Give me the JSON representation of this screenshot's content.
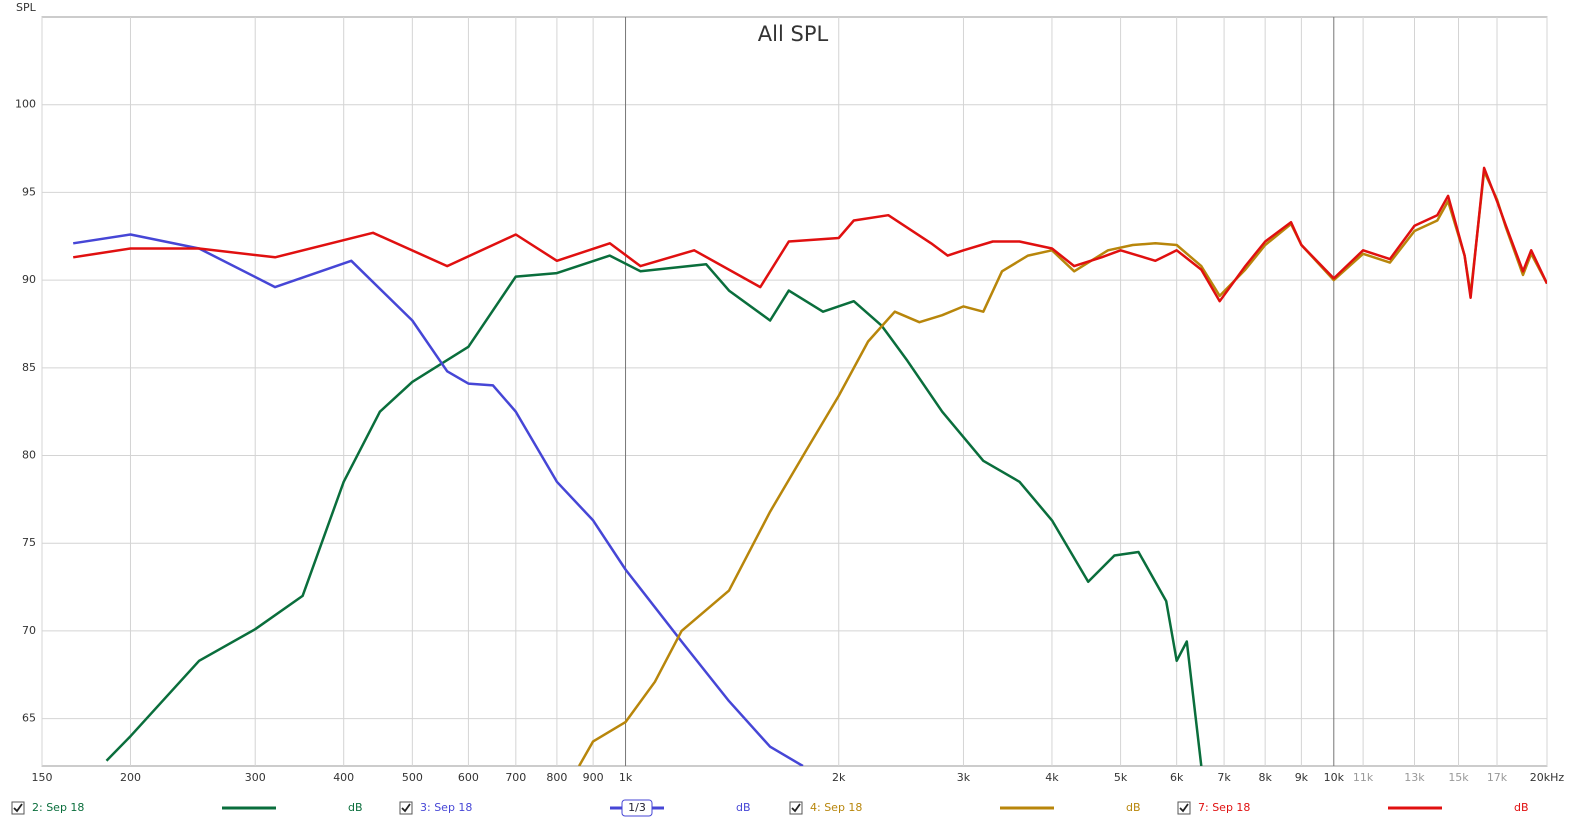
{
  "chart_data": {
    "type": "line",
    "title": "All SPL",
    "y_label": "SPL",
    "x_scale": "log",
    "grid": true,
    "xlim": [
      150,
      20000
    ],
    "ylim": [
      62.3,
      105
    ],
    "xticks": [
      150,
      200,
      300,
      400,
      500,
      600,
      700,
      800,
      900,
      {
        "value": 1000,
        "label": "1k"
      },
      {
        "value": 2000,
        "label": "2k"
      },
      {
        "value": 3000,
        "label": "3k"
      },
      {
        "value": 4000,
        "label": "4k"
      },
      {
        "value": 5000,
        "label": "5k"
      },
      {
        "value": 6000,
        "label": "6k"
      },
      {
        "value": 7000,
        "label": "7k"
      },
      {
        "value": 8000,
        "label": "8k"
      },
      {
        "value": 9000,
        "label": "9k"
      },
      {
        "value": 10000,
        "label": "10k"
      },
      {
        "value": 11000,
        "label": "11k"
      },
      {
        "value": 13000,
        "label": "13k"
      },
      {
        "value": 15000,
        "label": "15k"
      },
      {
        "value": 17000,
        "label": "17k"
      },
      {
        "value": 20000,
        "label": "20kHz"
      }
    ],
    "yticks": [
      65,
      70,
      75,
      80,
      85,
      90,
      95,
      100
    ],
    "series": [
      {
        "name": "2: Sep 18",
        "color": "#0a6e3c",
        "unit": "dB",
        "x": [
          185,
          200,
          250,
          300,
          350,
          400,
          450,
          500,
          600,
          700,
          800,
          950,
          1050,
          1300,
          1400,
          1600,
          1700,
          1900,
          2100,
          2300,
          2500,
          2800,
          3200,
          3600,
          4000,
          4500,
          4900,
          5300,
          5800,
          6000,
          6200,
          6500
        ],
        "values": [
          62.6,
          64.0,
          68.3,
          70.1,
          72.0,
          78.5,
          82.5,
          84.2,
          86.2,
          90.2,
          90.4,
          91.4,
          90.5,
          90.9,
          89.4,
          87.7,
          89.4,
          88.2,
          88.8,
          87.4,
          85.4,
          82.5,
          79.7,
          78.5,
          76.3,
          72.8,
          74.3,
          74.5,
          71.7,
          68.3,
          69.4,
          62.3
        ]
      },
      {
        "name": "3: Sep 18",
        "color": "#4646d6",
        "unit": "dB",
        "smoothing": "1/3",
        "x": [
          166,
          200,
          250,
          320,
          410,
          500,
          560,
          600,
          650,
          700,
          800,
          900,
          1000,
          1200,
          1400,
          1600,
          1780
        ],
        "values": [
          92.1,
          92.6,
          91.8,
          89.6,
          91.1,
          87.7,
          84.8,
          84.1,
          84.0,
          82.5,
          78.5,
          76.3,
          73.5,
          69.4,
          66.0,
          63.4,
          62.3
        ]
      },
      {
        "name": "4: Sep 18",
        "color": "#b8860b",
        "unit": "dB",
        "x": [
          860,
          900,
          1000,
          1100,
          1200,
          1400,
          1600,
          1800,
          2000,
          2200,
          2400,
          2600,
          2800,
          3000,
          3200,
          3400,
          3700,
          4000,
          4300,
          4800,
          5200,
          5600,
          6000,
          6500,
          6900,
          7500,
          8000,
          8700,
          9000,
          10000,
          11000,
          12000,
          13000,
          14000,
          14500,
          15300,
          15600,
          16300,
          17000,
          17500,
          18500,
          19000,
          20000
        ],
        "values": [
          62.3,
          63.7,
          64.8,
          67.1,
          70.0,
          72.3,
          76.8,
          80.3,
          83.4,
          86.5,
          88.2,
          87.6,
          88.0,
          88.5,
          88.2,
          90.5,
          91.4,
          91.7,
          90.5,
          91.7,
          92.0,
          92.1,
          92.0,
          90.8,
          89.1,
          90.6,
          92.0,
          93.2,
          92.0,
          90.0,
          91.5,
          91.0,
          92.8,
          93.4,
          94.5,
          91.4,
          89.2,
          96.2,
          94.6,
          93.0,
          90.3,
          91.5,
          89.8
        ]
      },
      {
        "name": "7: Sep 18",
        "color": "#e01010",
        "unit": "dB",
        "x": [
          166,
          200,
          250,
          320,
          440,
          560,
          700,
          800,
          950,
          1050,
          1250,
          1550,
          1700,
          2000,
          2100,
          2350,
          2700,
          2850,
          3000,
          3300,
          3600,
          4000,
          4300,
          4700,
          5000,
          5600,
          6000,
          6500,
          6900,
          7500,
          8000,
          8700,
          9000,
          10000,
          11000,
          12000,
          13000,
          14000,
          14500,
          15300,
          15600,
          16300,
          17000,
          17500,
          18500,
          19000,
          20000
        ],
        "values": [
          91.3,
          91.8,
          91.8,
          91.3,
          92.7,
          90.8,
          92.6,
          91.1,
          92.1,
          90.8,
          91.7,
          89.6,
          92.2,
          92.4,
          93.4,
          93.7,
          92.1,
          91.4,
          91.7,
          92.2,
          92.2,
          91.8,
          90.8,
          91.3,
          91.7,
          91.1,
          91.7,
          90.6,
          88.8,
          90.8,
          92.2,
          93.3,
          92.0,
          90.1,
          91.7,
          91.2,
          93.1,
          93.7,
          94.8,
          91.4,
          89.0,
          96.4,
          94.5,
          93.1,
          90.5,
          91.7,
          89.8
        ]
      }
    ]
  }
}
